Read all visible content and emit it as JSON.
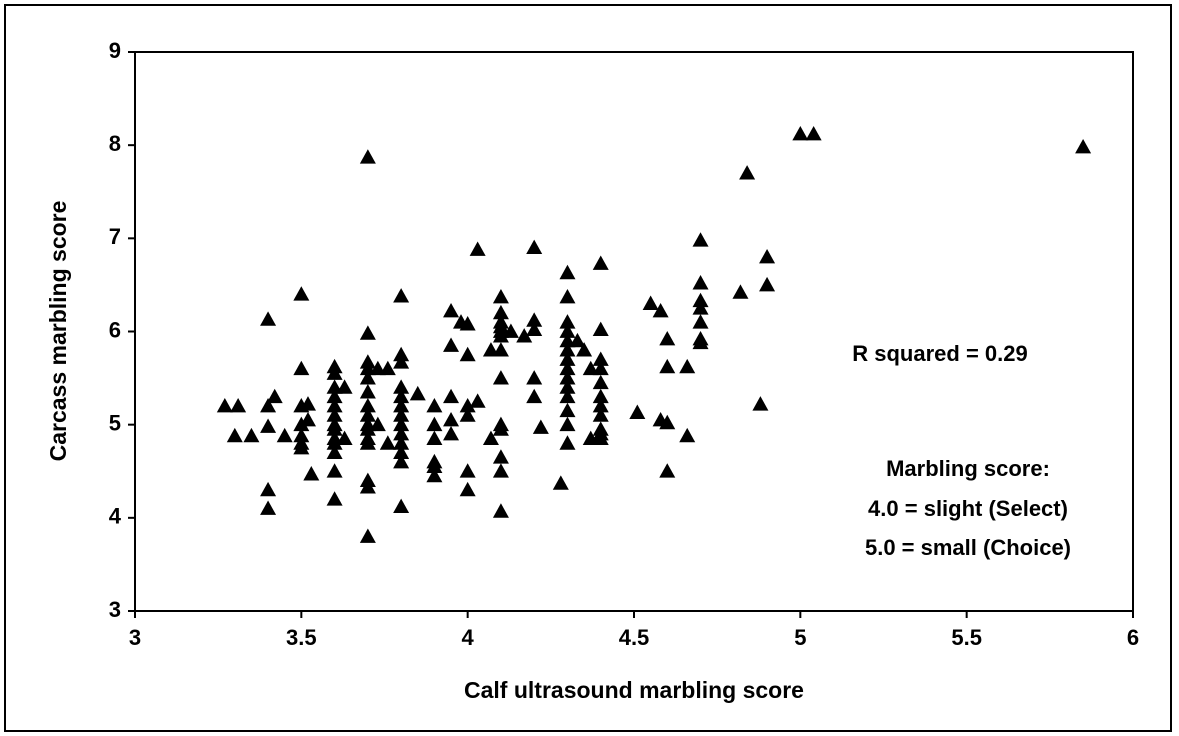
{
  "chart_data": {
    "type": "scatter",
    "xlabel": "Calf ultrasound marbling score",
    "ylabel": "Carcass marbling score",
    "annotations": [
      "R squared = 0.29",
      "Marbling score:",
      "4.0 = slight (Select)",
      "5.0 = small (Choice)"
    ],
    "color": "#000000",
    "xlim": [
      3,
      6
    ],
    "xticks": [
      3,
      3.5,
      4,
      4.5,
      5,
      5.5,
      6
    ],
    "ylim": [
      3,
      9
    ],
    "yticks": [
      3,
      4,
      5,
      6,
      7,
      8,
      9
    ],
    "x": [
      3.27,
      3.31,
      3.3,
      3.35,
      3.4,
      3.4,
      3.4,
      3.4,
      3.4,
      3.42,
      3.45,
      3.5,
      3.5,
      3.5,
      3.5,
      3.5,
      3.5,
      3.5,
      3.52,
      3.52,
      3.53,
      3.6,
      3.6,
      3.6,
      3.6,
      3.6,
      3.6,
      3.6,
      3.6,
      3.6,
      3.6,
      3.6,
      3.6,
      3.6,
      3.63,
      3.63,
      3.7,
      3.7,
      3.7,
      3.7,
      3.7,
      3.7,
      3.7,
      3.7,
      3.7,
      3.7,
      3.7,
      3.7,
      3.7,
      3.7,
      3.7,
      3.73,
      3.73,
      3.76,
      3.76,
      3.8,
      3.8,
      3.8,
      3.8,
      3.8,
      3.8,
      3.8,
      3.8,
      3.8,
      3.8,
      3.8,
      3.8,
      3.8,
      3.85,
      3.9,
      3.9,
      3.9,
      3.9,
      3.9,
      3.9,
      3.95,
      3.95,
      3.95,
      3.95,
      3.95,
      3.98,
      4.0,
      4.0,
      4.0,
      4.0,
      4.0,
      4.0,
      4.03,
      4.03,
      4.07,
      4.07,
      4.1,
      4.1,
      4.1,
      4.1,
      4.1,
      4.1,
      4.1,
      4.1,
      4.1,
      4.1,
      4.1,
      4.1,
      4.1,
      4.13,
      4.17,
      4.2,
      4.2,
      4.2,
      4.2,
      4.2,
      4.22,
      4.28,
      4.3,
      4.3,
      4.3,
      4.3,
      4.3,
      4.3,
      4.3,
      4.3,
      4.3,
      4.3,
      4.3,
      4.3,
      4.3,
      4.3,
      4.33,
      4.35,
      4.37,
      4.37,
      4.4,
      4.4,
      4.4,
      4.4,
      4.4,
      4.4,
      4.4,
      4.4,
      4.4,
      4.4,
      4.4,
      4.51,
      4.55,
      4.58,
      4.58,
      4.6,
      4.6,
      4.6,
      4.6,
      4.66,
      4.66,
      4.7,
      4.7,
      4.7,
      4.7,
      4.7,
      4.7,
      4.7,
      4.82,
      4.84,
      4.88,
      4.9,
      4.9,
      5.0,
      5.04,
      5.85
    ],
    "values": [
      5.2,
      5.2,
      4.88,
      4.88,
      6.13,
      5.2,
      4.98,
      4.3,
      4.1,
      5.3,
      4.88,
      6.4,
      5.6,
      5.2,
      5.0,
      4.88,
      4.8,
      4.75,
      5.05,
      5.22,
      4.47,
      5.62,
      5.55,
      5.4,
      5.3,
      5.2,
      5.1,
      5.0,
      4.95,
      4.85,
      4.8,
      4.7,
      4.5,
      4.2,
      5.4,
      4.85,
      7.87,
      5.98,
      5.67,
      5.6,
      5.5,
      5.35,
      5.2,
      5.1,
      5.0,
      4.95,
      4.85,
      4.8,
      4.4,
      4.33,
      3.8,
      5.6,
      5.0,
      5.6,
      4.8,
      6.38,
      5.75,
      5.67,
      5.4,
      5.3,
      5.2,
      5.1,
      5.0,
      4.9,
      4.8,
      4.7,
      4.6,
      4.12,
      5.33,
      5.2,
      5.0,
      4.85,
      4.6,
      4.55,
      4.45,
      6.22,
      5.85,
      5.3,
      5.05,
      4.9,
      6.1,
      6.08,
      5.75,
      5.2,
      5.1,
      4.5,
      4.3,
      6.88,
      5.25,
      5.8,
      4.85,
      6.37,
      6.2,
      6.1,
      6.05,
      6.0,
      5.95,
      5.8,
      5.5,
      5.0,
      4.95,
      4.65,
      4.5,
      4.07,
      6.0,
      5.95,
      6.9,
      6.12,
      6.02,
      5.5,
      5.3,
      4.97,
      4.37,
      6.63,
      6.37,
      6.1,
      6.0,
      5.9,
      5.8,
      5.7,
      5.6,
      5.5,
      5.4,
      5.3,
      5.15,
      5.0,
      4.8,
      5.9,
      5.8,
      5.6,
      4.85,
      6.73,
      6.02,
      5.7,
      5.6,
      5.45,
      5.3,
      5.2,
      5.1,
      4.95,
      4.9,
      4.85,
      5.13,
      6.3,
      6.22,
      5.05,
      5.92,
      5.62,
      5.02,
      4.5,
      5.62,
      4.88,
      6.98,
      6.52,
      6.33,
      6.25,
      6.1,
      5.92,
      5.88,
      6.42,
      7.7,
      5.22,
      6.8,
      6.5,
      8.12,
      8.12,
      7.98
    ]
  }
}
